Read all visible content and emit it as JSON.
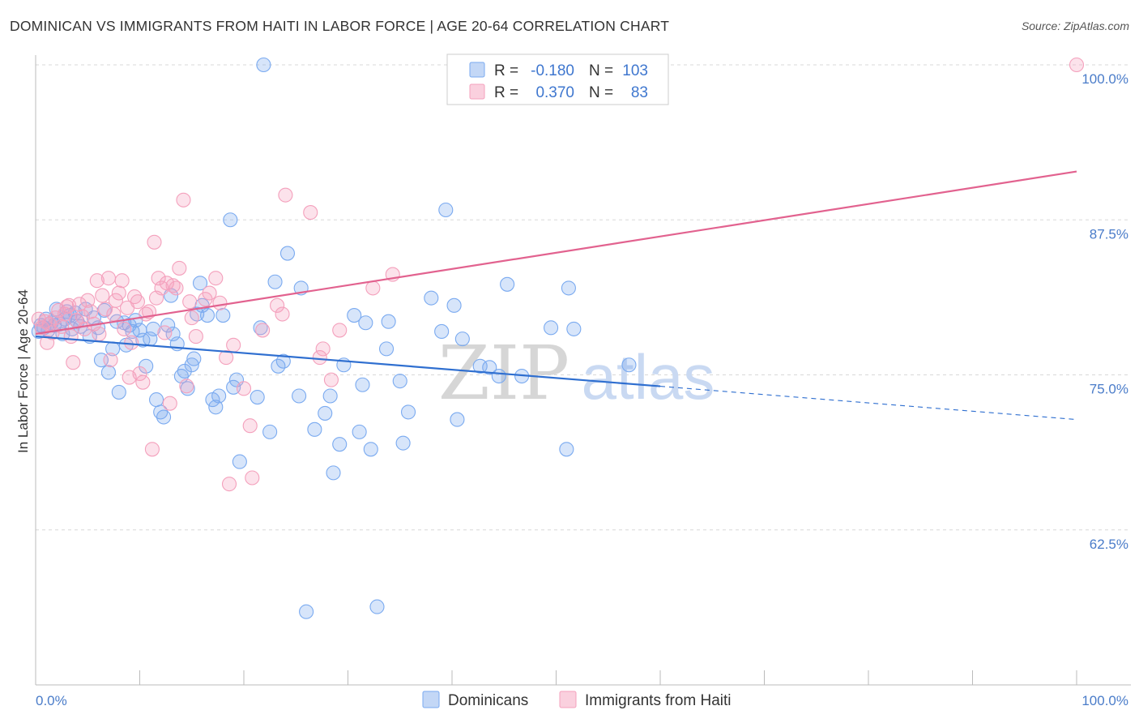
{
  "header": {
    "title": "DOMINICAN VS IMMIGRANTS FROM HAITI IN LABOR FORCE | AGE 20-64 CORRELATION CHART",
    "source": "Source: ZipAtlas.com"
  },
  "chart_data": {
    "type": "scatter",
    "xlabel": "",
    "ylabel": "In Labor Force | Age 20-64",
    "xlim": [
      0,
      100
    ],
    "ylim": [
      50,
      100
    ],
    "x_tick_labels": [
      "0.0%",
      "100.0%"
    ],
    "y_ticks": [
      62.5,
      75.0,
      87.5,
      100.0
    ],
    "y_tick_labels": [
      "62.5%",
      "75.0%",
      "87.5%",
      "100.0%"
    ],
    "grid": "horizontal dashed",
    "watermark": {
      "zip": "ZIP",
      "atlas": "atlas"
    },
    "legend_stats": [
      {
        "r_label": "R =",
        "r_value": "-0.180",
        "n_label": "N =",
        "n_value": "103"
      },
      {
        "r_label": "R =",
        "r_value": "0.370",
        "n_label": "N =",
        "n_value": "83"
      }
    ],
    "series": [
      {
        "name": "Dominicans",
        "color": "#7aaaf0",
        "line_color": "#2f6fd0",
        "trend": {
          "x0": 0,
          "y0": 78.1,
          "x1": 100,
          "y1": 71.4,
          "solid_until": 60
        },
        "points": [
          [
            0.3,
            78.5
          ],
          [
            0.5,
            79.0
          ],
          [
            0.8,
            78.8
          ],
          [
            1.0,
            79.5
          ],
          [
            1.2,
            78.6
          ],
          [
            1.5,
            79.2
          ],
          [
            1.8,
            79.0
          ],
          [
            2.0,
            80.3
          ],
          [
            2.3,
            79.1
          ],
          [
            2.6,
            78.3
          ],
          [
            2.8,
            79.5
          ],
          [
            3.0,
            80.1
          ],
          [
            3.3,
            79.8
          ],
          [
            3.5,
            78.7
          ],
          [
            3.8,
            80.0
          ],
          [
            4.0,
            79.3
          ],
          [
            4.3,
            78.9
          ],
          [
            4.8,
            80.3
          ],
          [
            5.2,
            78.1
          ],
          [
            5.6,
            79.6
          ],
          [
            6.0,
            78.8
          ],
          [
            6.3,
            76.2
          ],
          [
            6.6,
            80.2
          ],
          [
            7.0,
            75.2
          ],
          [
            7.4,
            77.1
          ],
          [
            7.8,
            79.3
          ],
          [
            8.0,
            73.6
          ],
          [
            8.5,
            79.2
          ],
          [
            8.7,
            77.4
          ],
          [
            9.0,
            79.0
          ],
          [
            9.3,
            78.5
          ],
          [
            9.6,
            79.4
          ],
          [
            10.0,
            78.6
          ],
          [
            10.3,
            77.8
          ],
          [
            10.6,
            75.7
          ],
          [
            11.0,
            77.9
          ],
          [
            11.3,
            78.7
          ],
          [
            11.6,
            73.0
          ],
          [
            12.0,
            72.0
          ],
          [
            12.3,
            71.6
          ],
          [
            12.7,
            79.0
          ],
          [
            13.0,
            81.4
          ],
          [
            13.2,
            78.3
          ],
          [
            13.6,
            77.5
          ],
          [
            14.0,
            74.9
          ],
          [
            14.3,
            75.3
          ],
          [
            14.6,
            73.9
          ],
          [
            15.0,
            75.8
          ],
          [
            15.2,
            76.3
          ],
          [
            15.5,
            79.9
          ],
          [
            15.8,
            82.4
          ],
          [
            16.0,
            80.6
          ],
          [
            16.5,
            79.8
          ],
          [
            17.0,
            73.0
          ],
          [
            17.3,
            72.4
          ],
          [
            17.6,
            73.3
          ],
          [
            18.0,
            79.8
          ],
          [
            18.7,
            87.5
          ],
          [
            19.0,
            74.0
          ],
          [
            19.3,
            74.6
          ],
          [
            19.6,
            68.0
          ],
          [
            21.3,
            73.2
          ],
          [
            21.6,
            78.8
          ],
          [
            21.9,
            100.0
          ],
          [
            22.5,
            70.4
          ],
          [
            23.0,
            82.5
          ],
          [
            23.3,
            75.7
          ],
          [
            23.8,
            76.1
          ],
          [
            24.2,
            84.8
          ],
          [
            25.3,
            73.3
          ],
          [
            25.5,
            82.0
          ],
          [
            26.0,
            55.9
          ],
          [
            26.8,
            70.6
          ],
          [
            27.8,
            71.9
          ],
          [
            28.3,
            73.3
          ],
          [
            28.6,
            67.1
          ],
          [
            29.2,
            69.4
          ],
          [
            29.6,
            75.8
          ],
          [
            30.6,
            79.8
          ],
          [
            31.1,
            70.4
          ],
          [
            31.4,
            74.2
          ],
          [
            31.7,
            79.2
          ],
          [
            32.2,
            69.0
          ],
          [
            32.8,
            56.3
          ],
          [
            33.7,
            77.1
          ],
          [
            33.9,
            79.3
          ],
          [
            35.0,
            74.5
          ],
          [
            35.3,
            69.5
          ],
          [
            35.8,
            72.0
          ],
          [
            38.0,
            81.2
          ],
          [
            39.0,
            78.5
          ],
          [
            39.4,
            88.3
          ],
          [
            40.2,
            80.6
          ],
          [
            40.5,
            71.4
          ],
          [
            41.0,
            77.9
          ],
          [
            42.7,
            75.7
          ],
          [
            43.6,
            75.6
          ],
          [
            44.5,
            74.9
          ],
          [
            45.3,
            82.3
          ],
          [
            46.7,
            74.9
          ],
          [
            49.5,
            78.8
          ],
          [
            51.0,
            69.0
          ],
          [
            51.2,
            82.0
          ],
          [
            51.7,
            78.7
          ],
          [
            57.0,
            75.8
          ]
        ]
      },
      {
        "name": "Immigrants from Haiti",
        "color": "#f4a0bc",
        "line_color": "#e2628f",
        "trend": {
          "x0": 0,
          "y0": 78.3,
          "x1": 100,
          "y1": 91.4,
          "solid_until": 100
        },
        "points": [
          [
            0.3,
            79.5
          ],
          [
            0.6,
            78.8
          ],
          [
            0.9,
            79.3
          ],
          [
            1.1,
            77.6
          ],
          [
            1.3,
            79.1
          ],
          [
            1.6,
            78.4
          ],
          [
            1.9,
            79.6
          ],
          [
            2.2,
            80.2
          ],
          [
            2.5,
            78.9
          ],
          [
            2.8,
            79.9
          ],
          [
            3.0,
            80.5
          ],
          [
            3.2,
            80.6
          ],
          [
            3.4,
            78.1
          ],
          [
            3.6,
            76.0
          ],
          [
            3.9,
            79.4
          ],
          [
            4.2,
            80.7
          ],
          [
            4.5,
            79.7
          ],
          [
            4.7,
            78.7
          ],
          [
            5.0,
            81.0
          ],
          [
            5.3,
            80.1
          ],
          [
            5.6,
            79.1
          ],
          [
            5.9,
            82.6
          ],
          [
            6.1,
            78.3
          ],
          [
            6.4,
            81.4
          ],
          [
            6.7,
            80.3
          ],
          [
            7.0,
            82.8
          ],
          [
            7.2,
            76.2
          ],
          [
            7.5,
            79.9
          ],
          [
            7.7,
            81.0
          ],
          [
            8.0,
            81.6
          ],
          [
            8.3,
            82.6
          ],
          [
            8.5,
            78.7
          ],
          [
            8.8,
            80.4
          ],
          [
            9.0,
            74.8
          ],
          [
            9.2,
            77.6
          ],
          [
            9.5,
            81.3
          ],
          [
            9.8,
            80.9
          ],
          [
            10.0,
            75.1
          ],
          [
            10.3,
            74.4
          ],
          [
            10.6,
            79.9
          ],
          [
            10.9,
            80.1
          ],
          [
            11.2,
            69.0
          ],
          [
            11.4,
            85.7
          ],
          [
            11.6,
            81.2
          ],
          [
            11.8,
            82.8
          ],
          [
            12.1,
            82.0
          ],
          [
            12.4,
            78.4
          ],
          [
            12.6,
            82.4
          ],
          [
            12.9,
            72.7
          ],
          [
            13.2,
            82.2
          ],
          [
            13.5,
            82.0
          ],
          [
            13.8,
            83.6
          ],
          [
            14.2,
            89.1
          ],
          [
            14.5,
            74.1
          ],
          [
            14.8,
            80.9
          ],
          [
            15.0,
            79.6
          ],
          [
            15.4,
            78.1
          ],
          [
            16.3,
            81.1
          ],
          [
            16.7,
            81.6
          ],
          [
            17.3,
            82.8
          ],
          [
            17.7,
            80.8
          ],
          [
            18.3,
            76.4
          ],
          [
            18.6,
            66.2
          ],
          [
            19.0,
            77.4
          ],
          [
            20.0,
            73.9
          ],
          [
            20.6,
            70.9
          ],
          [
            20.8,
            66.7
          ],
          [
            21.8,
            78.6
          ],
          [
            23.2,
            80.6
          ],
          [
            23.7,
            79.9
          ],
          [
            24.0,
            89.5
          ],
          [
            26.4,
            88.1
          ],
          [
            27.3,
            76.4
          ],
          [
            27.6,
            77.1
          ],
          [
            28.4,
            74.6
          ],
          [
            29.2,
            78.6
          ],
          [
            32.4,
            82.0
          ],
          [
            34.3,
            83.1
          ],
          [
            100.0,
            100.0
          ]
        ]
      }
    ]
  }
}
